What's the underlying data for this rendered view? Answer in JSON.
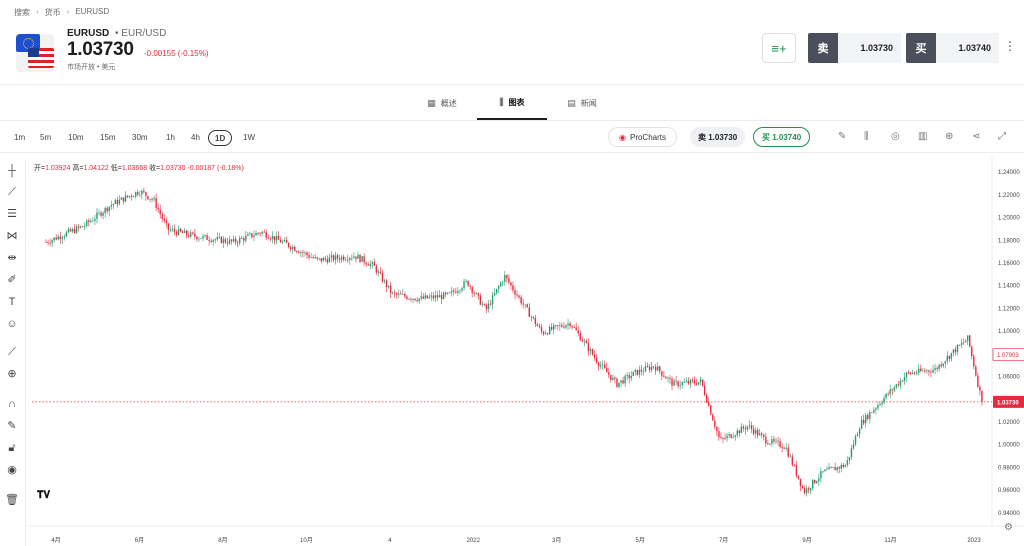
{
  "breadcrumb": [
    "搜索",
    "货币",
    "EURUSD"
  ],
  "instrument": {
    "symbol": "EURUSD",
    "subtitle": "EUR/USD",
    "price": "1.03730",
    "change": "-0.00155 (-0.15%)",
    "status": "市场开放 • 美元"
  },
  "trade": {
    "sell_label": "卖",
    "sell_price": "1.03730",
    "buy_label": "买",
    "buy_price": "1.03740"
  },
  "tabs": [
    {
      "label": "概述",
      "icon": "grid-icon"
    },
    {
      "label": "图表",
      "icon": "candles-icon",
      "active": true
    },
    {
      "label": "新闻",
      "icon": "news-icon"
    }
  ],
  "timeframes": [
    "1m",
    "5m",
    "10m",
    "15m",
    "30m",
    "1h",
    "4h",
    "1D",
    "1W"
  ],
  "active_timeframe": "1D",
  "toolbar": {
    "prochart_label": "ProCharts",
    "sell_pill": "卖 1.03730",
    "buy_pill": "买 1.03740"
  },
  "ohlc": {
    "open_label": "开=",
    "open": "1.03924",
    "high_label": "高=",
    "high": "1.04122",
    "low_label": "低=",
    "low": "1.03668",
    "close_label": "收=",
    "close": "1.03730",
    "change": "-0.00187 (-0.18%)"
  },
  "chart_data": {
    "type": "candlestick",
    "y_ticks": [
      "1.24000",
      "1.22000",
      "1.20000",
      "1.18000",
      "1.16000",
      "1.14000",
      "1.12000",
      "1.10000",
      "1.08000",
      "1.06000",
      "1.04000",
      "1.02000",
      "1.00000",
      "0.98000",
      "0.96000",
      "0.94000"
    ],
    "ylim": [
      0.935,
      1.245
    ],
    "x_ticks": [
      "4月",
      "6月",
      "8月",
      "10月",
      "4",
      "2022",
      "3月",
      "5月",
      "7月",
      "9月",
      "11月",
      "2023"
    ],
    "last_price_label": "1.03730",
    "marker_label": "1.07903",
    "colors": {
      "up": "#1f9e6e",
      "down": "#e5293e"
    },
    "path": [
      [
        0,
        1.178
      ],
      [
        0.04,
        1.192
      ],
      [
        0.07,
        1.211
      ],
      [
        0.1,
        1.223
      ],
      [
        0.115,
        1.215
      ],
      [
        0.13,
        1.189
      ],
      [
        0.16,
        1.183
      ],
      [
        0.2,
        1.178
      ],
      [
        0.23,
        1.187
      ],
      [
        0.26,
        1.175
      ],
      [
        0.29,
        1.162
      ],
      [
        0.33,
        1.166
      ],
      [
        0.35,
        1.157
      ],
      [
        0.37,
        1.132
      ],
      [
        0.4,
        1.128
      ],
      [
        0.43,
        1.131
      ],
      [
        0.45,
        1.143
      ],
      [
        0.47,
        1.118
      ],
      [
        0.49,
        1.148
      ],
      [
        0.51,
        1.123
      ],
      [
        0.53,
        1.098
      ],
      [
        0.56,
        1.107
      ],
      [
        0.59,
        1.072
      ],
      [
        0.61,
        1.053
      ],
      [
        0.63,
        1.063
      ],
      [
        0.65,
        1.069
      ],
      [
        0.67,
        1.053
      ],
      [
        0.7,
        1.055
      ],
      [
        0.72,
        1.003
      ],
      [
        0.75,
        1.016
      ],
      [
        0.77,
        1.003
      ],
      [
        0.79,
        0.998
      ],
      [
        0.81,
        0.958
      ],
      [
        0.83,
        0.975
      ],
      [
        0.855,
        0.982
      ],
      [
        0.87,
        1.018
      ],
      [
        0.89,
        1.036
      ],
      [
        0.92,
        1.062
      ],
      [
        0.95,
        1.066
      ],
      [
        0.97,
        1.082
      ],
      [
        0.985,
        1.093
      ],
      [
        1.0,
        1.0373
      ]
    ]
  }
}
